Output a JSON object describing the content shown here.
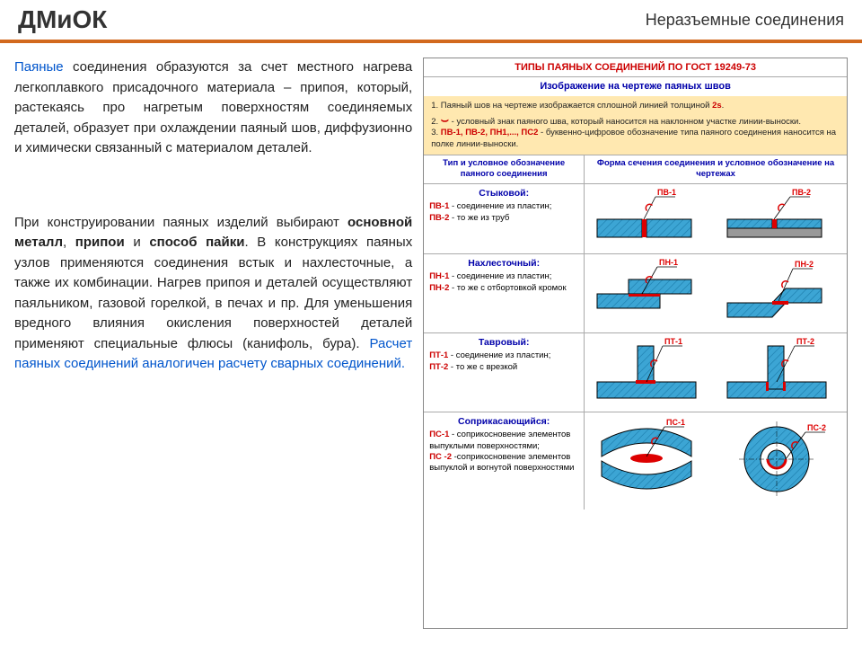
{
  "header": {
    "title": "ДМиОК",
    "subtitle": "Неразъемные соединения"
  },
  "left": {
    "p1_blue": "Паяные",
    "p1_rest": " соединения образуются за счет местного нагрева легкоплавкого присадочного материала – припоя, который, растекаясь про нагретым поверхностям соединяемых деталей, образует при охлаждении паяный шов, диффузионно и химически связанный с материалом деталей.",
    "p2a": "При конструировании паяных изделий выбирают ",
    "p2b1": "основной металл",
    "p2c": ", ",
    "p2b2": "припои",
    "p2d": " и ",
    "p2b3": "способ пайки",
    "p2e": ". В конструкциях паяных узлов применяются соединения встык и нахлесточные, а также их комбинации. Нагрев припоя и деталей осуществляют паяльником, газовой горелкой, в печах и пр. Для уменьшения вредного влияния окисления поверхностей деталей применяют специальные флюсы (канифоль, бура). ",
    "p2blue": "Расчет паяных соединений аналогичен расчету сварных соединений.",
    "p2f": ""
  },
  "right": {
    "title": "ТИПЫ ПАЯНЫХ СОЕДИНЕНИЙ ПО ГОСТ 19249-73",
    "subtitle": "Изображение на чертеже паяных швов",
    "note1a": "1. Паяный шов на чертеже изображается сплошной линией толщиной ",
    "note1b": "2s",
    "note1c": ".",
    "note2a": "2. ",
    "note2sym": "⌣",
    "note2b": " - условный знак паяного шва, который наносится на наклонном участке линии-выноски.",
    "note3a": "3. ",
    "note3b": "ПВ-1, ПВ-2, ПН1,..., ПС2",
    "note3c": " - буквенно-цифровое обозначение типа паяного соединения наносится на полке линии-выноски.",
    "th1": "Тип и условное обозначение паяного соединения",
    "th2": "Форма сечения соединения и условное обозначение на чертежах",
    "rows": [
      {
        "name": "Стыковой:",
        "c1": "ПВ-1",
        "t1": " - соединение из пластин;",
        "c2": "ПВ-2",
        "t2": " - то же из труб",
        "l1": "ПВ-1",
        "l2": "ПВ-2",
        "h": 78
      },
      {
        "name": "Нахлесточный:",
        "c1": "ПН-1",
        "t1": " - соединение из пластин;",
        "c2": "ПН-2",
        "t2": " - то же с отбортовкой кромок",
        "l1": "ПН-1",
        "l2": "ПН-2",
        "h": 88
      },
      {
        "name": "Тавровый:",
        "c1": "ПТ-1",
        "t1": " - соединение из пластин;",
        "c2": "ПТ-2",
        "t2": " - то же с врезкой",
        "l1": "ПТ-1",
        "l2": "ПТ-2",
        "h": 88
      },
      {
        "name": "Соприкасающийся:",
        "c1": "ПС-1",
        "t1": " - соприкосновение элементов выпуклыми поверхностями;",
        "c2": "ПС -2",
        "t2": " -соприкосновение элементов выпуклой и вогнутой поверхностями",
        "l1": "ПС-1",
        "l2": "ПС-2",
        "h": 108
      }
    ]
  },
  "colors": {
    "hatch": "#3ca5d4",
    "solder": "#d00",
    "outline": "#000",
    "gray": "#999"
  }
}
